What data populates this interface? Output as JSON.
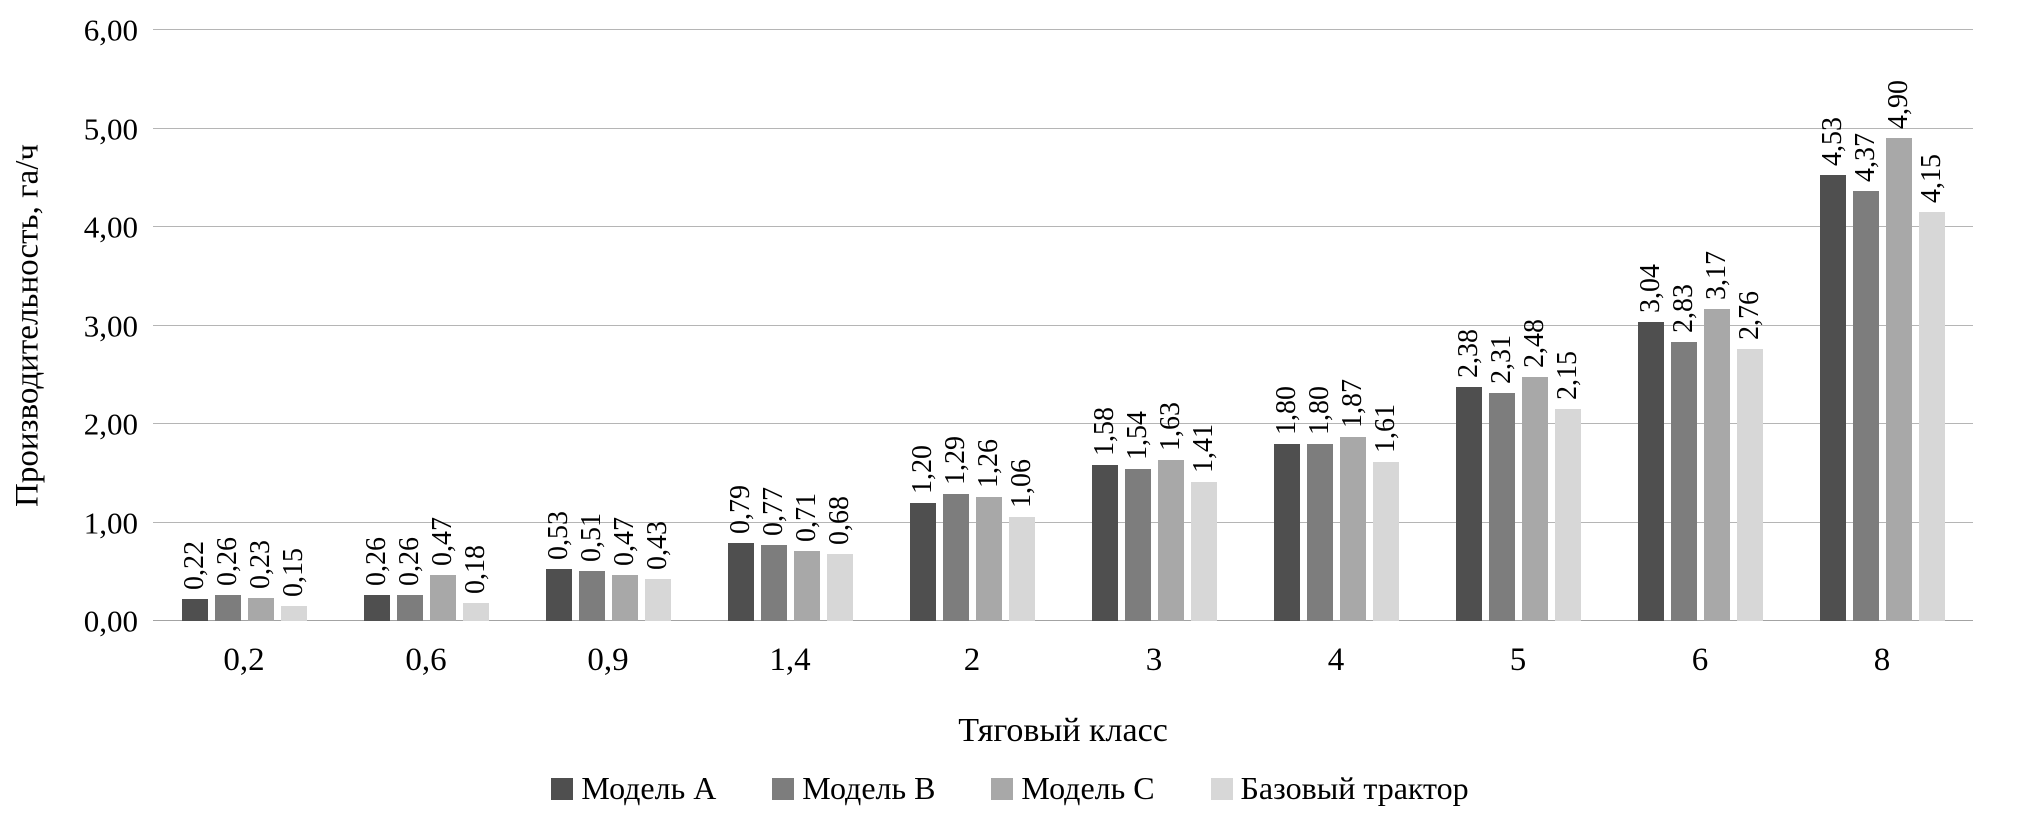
{
  "chart_data": {
    "type": "bar",
    "title": "",
    "xlabel": "Тяговый класс",
    "ylabel": "Производительность, га/ч",
    "ylim": [
      0,
      6
    ],
    "grid": true,
    "legend_position": "bottom",
    "yticks": {
      "values": [
        0,
        1,
        2,
        3,
        4,
        5,
        6
      ],
      "labels": [
        "0,00",
        "1,00",
        "2,00",
        "3,00",
        "4,00",
        "5,00",
        "6,00"
      ]
    },
    "categories": [
      "0,2",
      "0,6",
      "0,9",
      "1,4",
      "2",
      "3",
      "4",
      "5",
      "6",
      "8"
    ],
    "series": [
      {
        "name": "Модель A",
        "color": "#4f4f4f",
        "values": [
          0.22,
          0.26,
          0.53,
          0.79,
          1.2,
          1.58,
          1.8,
          2.38,
          3.04,
          4.53
        ],
        "labels": [
          "0,22",
          "0,26",
          "0,53",
          "0,79",
          "1,20",
          "1,58",
          "1,80",
          "2,38",
          "3,04",
          "4,53"
        ]
      },
      {
        "name": "Модель B",
        "color": "#7d7d7d",
        "values": [
          0.26,
          0.26,
          0.51,
          0.77,
          1.29,
          1.54,
          1.8,
          2.31,
          2.83,
          4.37
        ],
        "labels": [
          "0,26",
          "0,26",
          "0,51",
          "0,77",
          "1,29",
          "1,54",
          "1,80",
          "2,31",
          "2,83",
          "4,37"
        ]
      },
      {
        "name": "Модель C",
        "color": "#a8a8a8",
        "values": [
          0.23,
          0.47,
          0.47,
          0.71,
          1.26,
          1.63,
          1.87,
          2.48,
          3.17,
          4.9
        ],
        "labels": [
          "0,23",
          "0,47",
          "0,47",
          "0,71",
          "1,26",
          "1,63",
          "1,87",
          "2,48",
          "3,17",
          "4,90"
        ]
      },
      {
        "name": "Базовый трактор",
        "color": "#d7d7d7",
        "values": [
          0.15,
          0.18,
          0.43,
          0.68,
          1.06,
          1.41,
          1.61,
          2.15,
          2.76,
          4.15
        ],
        "labels": [
          "0,15",
          "0,18",
          "0,43",
          "0,68",
          "1,06",
          "1,41",
          "1,61",
          "2,15",
          "2,76",
          "4,15"
        ]
      }
    ],
    "colors": {
      "gridline": "#b5b5b5",
      "baseline": "#a3a3a3",
      "text": "#000000",
      "background": "#ffffff"
    }
  }
}
